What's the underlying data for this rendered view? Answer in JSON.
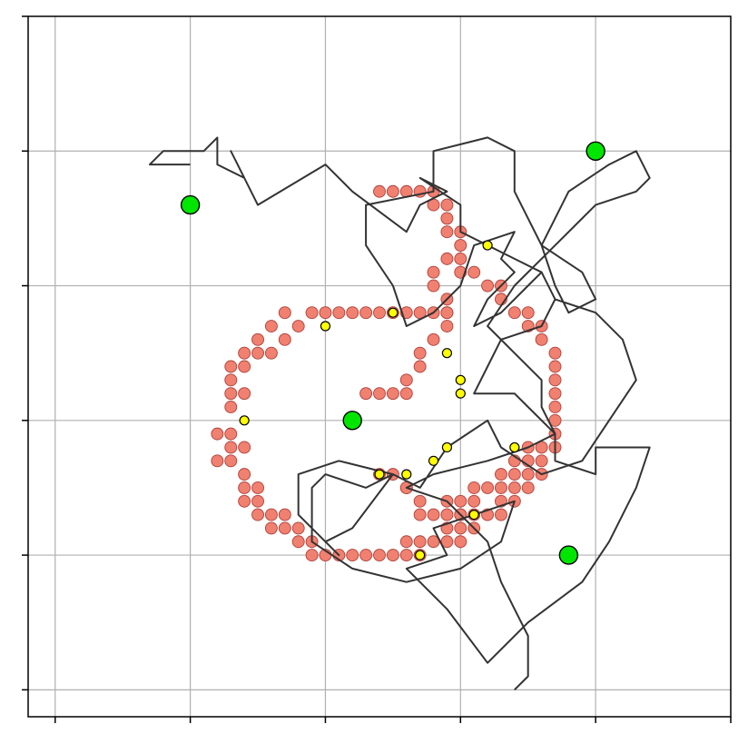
{
  "chart_data": {
    "type": "scatter",
    "title": "",
    "xlabel": "",
    "ylabel": "",
    "xlim": [
      0.1,
      5.3
    ],
    "ylim": [
      0.1,
      5.3
    ],
    "xticks": [
      0.3,
      1.3,
      2.3,
      3.3,
      4.3,
      5.3
    ],
    "yticks": [
      0.3,
      1.3,
      2.3,
      3.3,
      4.3,
      5.3
    ],
    "tick_labels_visible": false,
    "grid": true,
    "colors": {
      "path": "#333333",
      "occupied_cells": "#f08070",
      "intersections": "#ffff00",
      "nodes": "#00e600"
    },
    "path": {
      "x": [
        1.3,
        1.0,
        1.1,
        1.4,
        1.5,
        1.5,
        1.7,
        1.6,
        1.8,
        2.3,
        2.5,
        2.9,
        3.0,
        3.2,
        3.0,
        3.3,
        3.3,
        3.7,
        3.9,
        4.0,
        3.9,
        3.6,
        3.5,
        3.4,
        3.7,
        3.8,
        4.0,
        4.0,
        4.3,
        4.3,
        4.7,
        4.6,
        4.4,
        4.2,
        3.8,
        3.5,
        3.2,
        2.9,
        3.2,
        3.1,
        3.4,
        3.7,
        3.6,
        3.3,
        2.9,
        2.5,
        2.2,
        2.2,
        2.3,
        2.6,
        2.8,
        2.5,
        2.3,
        2.4,
        2.1,
        2.1,
        2.4,
        2.8,
        3.0,
        3.2,
        3.5,
        3.6,
        3.9,
        4.2,
        4.4,
        4.6,
        4.5,
        4.3,
        4.0,
        3.9,
        3.8,
        3.6,
        3.4,
        3.5,
        3.7,
        3.6,
        3.7,
        3.4,
        3.3,
        3.1,
        2.9,
        2.8,
        2.6,
        2.6,
        3.1,
        3.1,
        3.5,
        3.7,
        3.7,
        3.8,
        3.9,
        4.2,
        4.3,
        4.1,
        4.0,
        3.9,
        4.0,
        4.1,
        4.4,
        4.6,
        4.7,
        4.6,
        4.3,
        4.0,
        3.7,
        3.5,
        3.7,
        3.9,
        3.9,
        4.0,
        3.8,
        3.5,
        3.1,
        2.9,
        3.2,
        3.3,
        3.5,
        3.6,
        3.7,
        3.8,
        3.8,
        3.7
      ],
      "y": [
        4.2,
        4.2,
        4.3,
        4.3,
        4.4,
        4.2,
        4.1,
        4.3,
        3.9,
        4.2,
        4.0,
        3.7,
        3.9,
        4.0,
        4.1,
        3.9,
        3.7,
        3.5,
        3.4,
        3.2,
        3.0,
        2.9,
        2.7,
        2.5,
        2.5,
        2.4,
        2.2,
        2.0,
        1.9,
        2.1,
        2.1,
        1.8,
        1.4,
        1.1,
        0.8,
        0.5,
        0.9,
        1.2,
        1.3,
        1.5,
        1.6,
        1.7,
        1.4,
        1.2,
        1.1,
        1.2,
        1.4,
        1.8,
        1.9,
        1.8,
        1.9,
        1.5,
        1.4,
        1.3,
        1.6,
        1.9,
        2.0,
        1.9,
        1.8,
        2.1,
        2.3,
        2.1,
        1.9,
        2.0,
        2.3,
        2.6,
        2.9,
        3.1,
        3.2,
        3.4,
        3.3,
        3.1,
        3.0,
        3.2,
        3.4,
        3.5,
        3.7,
        3.6,
        3.3,
        3.1,
        3.0,
        3.3,
        3.6,
        3.9,
        4.0,
        4.3,
        4.4,
        4.3,
        4.0,
        3.8,
        3.6,
        3.4,
        3.2,
        3.1,
        3.3,
        3.6,
        3.8,
        4.0,
        4.2,
        4.3,
        4.1,
        4.0,
        3.9,
        3.6,
        3.3,
        3.0,
        2.8,
        2.6,
        2.4,
        2.2,
        2.1,
        2.0,
        1.9,
        1.8,
        1.7,
        1.6,
        1.4,
        1.1,
        0.9,
        0.7,
        0.4,
        0.3
      ]
    },
    "occupied_cells": {
      "x": [
        2.2,
        2.3,
        2.4,
        2.5,
        2.6,
        2.7,
        2.8,
        2.9,
        3.0,
        3.1,
        3.2,
        2.0,
        2.1,
        1.9,
        2.0,
        1.8,
        1.9,
        1.8,
        1.7,
        1.6,
        1.7,
        1.6,
        1.7,
        1.6,
        1.6,
        1.6,
        1.5,
        1.6,
        1.7,
        1.5,
        1.6,
        1.7,
        1.7,
        1.8,
        1.7,
        1.8,
        1.8,
        1.9,
        2.0,
        1.9,
        2.0,
        2.1,
        2.1,
        2.2,
        2.2,
        2.3,
        2.4,
        2.5,
        2.6,
        2.7,
        2.8,
        2.9,
        3.0,
        2.9,
        3.0,
        3.1,
        3.2,
        3.3,
        3.2,
        3.3,
        3.4,
        3.3,
        3.4,
        3.5,
        3.6,
        3.6,
        3.7,
        3.7,
        3.8,
        3.8,
        3.9,
        3.9,
        3.9,
        4.0,
        4.0,
        4.0,
        4.0,
        4.0,
        4.0,
        4.0,
        4.0,
        3.9,
        3.9,
        3.8,
        3.8,
        3.7,
        3.6,
        3.6,
        3.5,
        3.4,
        3.3,
        3.3,
        3.3,
        3.3,
        3.2,
        3.2,
        3.2,
        3.1,
        3.1,
        3.0,
        2.9,
        2.8,
        2.7,
        3.2,
        3.1,
        3.1,
        3.2,
        3.2,
        3.2,
        3.1,
        3.0,
        3.0,
        2.9,
        2.9,
        2.8,
        2.7,
        2.6,
        2.7,
        2.8,
        2.9,
        2.9,
        3.0,
        3.0,
        3.1,
        3.2,
        3.3,
        3.2,
        3.3,
        3.4,
        3.4,
        3.5,
        3.6,
        3.6,
        3.7,
        3.7,
        3.8,
        3.8
      ],
      "y": [
        3.1,
        3.1,
        3.1,
        3.1,
        3.1,
        3.1,
        3.1,
        3.1,
        3.1,
        3.1,
        3.1,
        3.1,
        3.0,
        3.0,
        2.9,
        2.9,
        2.8,
        2.8,
        2.8,
        2.7,
        2.7,
        2.6,
        2.5,
        2.5,
        2.4,
        2.2,
        2.2,
        2.1,
        2.1,
        2.0,
        2.0,
        1.9,
        1.8,
        1.8,
        1.7,
        1.7,
        1.6,
        1.6,
        1.6,
        1.5,
        1.5,
        1.5,
        1.4,
        1.4,
        1.3,
        1.3,
        1.3,
        1.3,
        1.3,
        1.3,
        1.3,
        1.3,
        1.3,
        1.4,
        1.4,
        1.4,
        1.4,
        1.4,
        1.5,
        1.5,
        1.5,
        1.6,
        1.6,
        1.6,
        1.6,
        1.7,
        1.7,
        1.8,
        1.8,
        1.9,
        1.9,
        2.0,
        2.1,
        2.1,
        2.2,
        2.3,
        2.4,
        2.5,
        2.6,
        2.7,
        2.8,
        2.9,
        3.0,
        3.0,
        3.1,
        3.1,
        3.2,
        3.3,
        3.3,
        3.4,
        3.4,
        3.5,
        3.6,
        3.7,
        3.7,
        3.8,
        3.9,
        3.9,
        4.0,
        4.0,
        4.0,
        4.0,
        4.0,
        3.5,
        3.4,
        3.3,
        3.2,
        3.1,
        3.0,
        2.9,
        2.8,
        2.7,
        2.6,
        2.5,
        2.5,
        2.5,
        2.5,
        1.9,
        1.9,
        1.8,
        1.8,
        1.7,
        1.6,
        1.6,
        1.6,
        1.6,
        1.7,
        1.7,
        1.7,
        1.8,
        1.8,
        1.8,
        1.9,
        1.9,
        2.0,
        2.0,
        2.1
      ]
    },
    "intersections": {
      "x": [
        1.7,
        2.3,
        2.8,
        3.2,
        3.5,
        3.3,
        3.3,
        3.2,
        3.1,
        2.9,
        2.7,
        3.7,
        3.4,
        3.0
      ],
      "y": [
        2.3,
        3.0,
        3.1,
        2.8,
        3.6,
        2.6,
        2.5,
        2.1,
        2.0,
        1.9,
        1.9,
        2.1,
        1.6,
        1.3
      ]
    },
    "nodes": {
      "x": [
        1.3,
        4.3,
        2.5,
        4.1
      ],
      "y": [
        3.9,
        4.3,
        2.3,
        1.3
      ]
    }
  }
}
